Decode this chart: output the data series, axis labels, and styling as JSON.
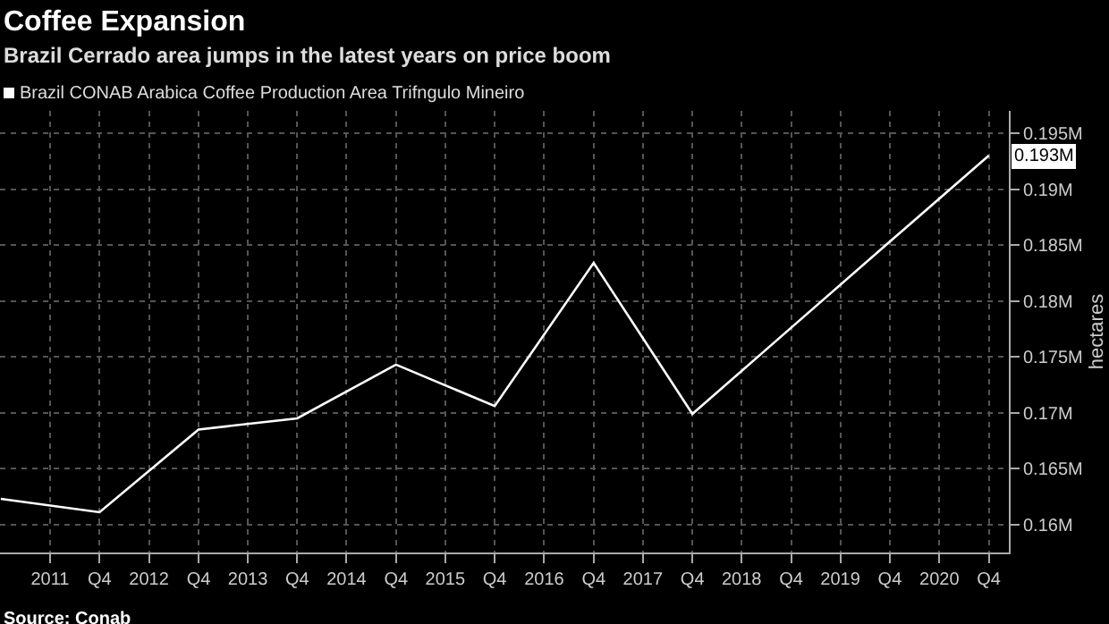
{
  "chart_data": {
    "type": "line",
    "title": "Coffee Expansion",
    "subtitle": "Brazil Cerrado area jumps in the latest years on price boom",
    "ylabel": "hectares",
    "x": [
      "2010-12-31",
      "2011-12-31",
      "2012-12-31",
      "2013-12-31",
      "2014-12-31",
      "2015-12-31",
      "2016-12-31",
      "2017-12-31",
      "2018-12-31",
      "2019-12-31",
      "2020-12-31"
    ],
    "series": [
      {
        "name": "Brazil CONAB Arabica Coffee Production Area Trifngulo Mineiro",
        "color": "#ffffff",
        "values": [
          162300,
          161100,
          168500,
          169500,
          174300,
          170600,
          183400,
          169900,
          177600,
          185300,
          193000
        ]
      }
    ],
    "xlim": [
      "2010-12-28",
      "2021-03-15"
    ],
    "xticks": [
      {
        "value": "2011-12-31",
        "label": "Q4"
      },
      {
        "value": "2012-12-31",
        "label": "Q4"
      },
      {
        "value": "2013-12-31",
        "label": "Q4"
      },
      {
        "value": "2014-12-31",
        "label": "Q4"
      },
      {
        "value": "2015-12-31",
        "label": "Q4"
      },
      {
        "value": "2016-12-31",
        "label": "Q4"
      },
      {
        "value": "2017-12-31",
        "label": "Q4"
      },
      {
        "value": "2018-12-31",
        "label": "Q4"
      },
      {
        "value": "2019-12-31",
        "label": "Q4"
      },
      {
        "value": "2020-12-31",
        "label": "Q4"
      },
      {
        "value": "2011-07-01",
        "label": "2011"
      },
      {
        "value": "2012-07-01",
        "label": "2012"
      },
      {
        "value": "2013-07-01",
        "label": "2013"
      },
      {
        "value": "2014-07-01",
        "label": "2014"
      },
      {
        "value": "2015-07-01",
        "label": "2015"
      },
      {
        "value": "2016-07-01",
        "label": "2016"
      },
      {
        "value": "2017-07-01",
        "label": "2017"
      },
      {
        "value": "2018-07-01",
        "label": "2018"
      },
      {
        "value": "2019-07-01",
        "label": "2019"
      },
      {
        "value": "2020-07-01",
        "label": "2020"
      }
    ],
    "ylim": [
      157500,
      197000
    ],
    "yticks": [
      {
        "value": 160000,
        "label": "0.16M"
      },
      {
        "value": 165000,
        "label": "0.165M"
      },
      {
        "value": 170000,
        "label": "0.17M"
      },
      {
        "value": 175000,
        "label": "0.175M"
      },
      {
        "value": 180000,
        "label": "0.18M"
      },
      {
        "value": 185000,
        "label": "0.185M"
      },
      {
        "value": 190000,
        "label": "0.19M"
      },
      {
        "value": 195000,
        "label": "0.195M"
      }
    ],
    "annotations": [
      {
        "text": "0.193M",
        "x": "2020-12-31",
        "y": 193000
      },
      "Source: Conab"
    ],
    "grid": true,
    "legend": "top left",
    "marker": "none",
    "line_style": "solid"
  }
}
